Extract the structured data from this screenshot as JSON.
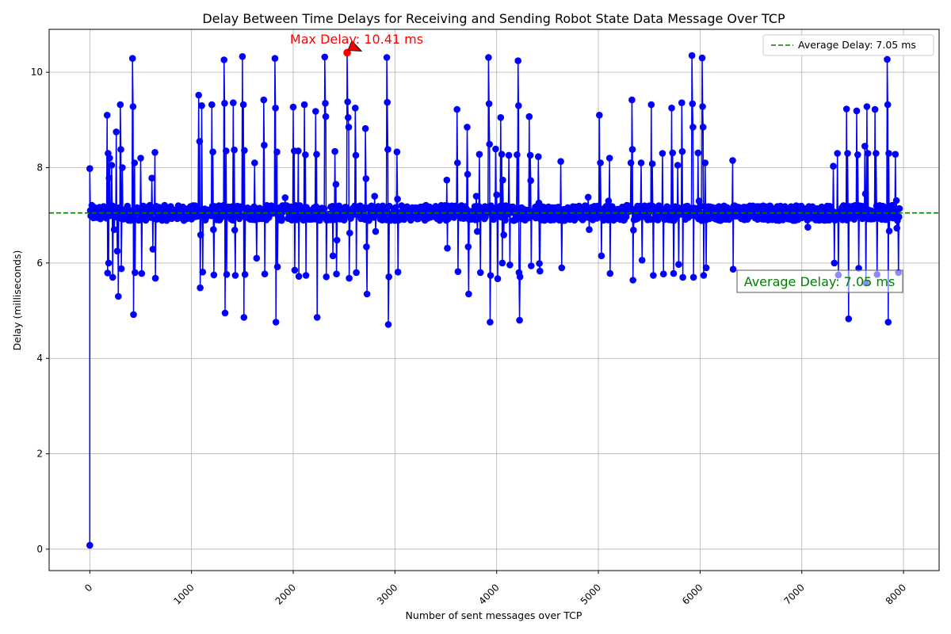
{
  "chart_data": {
    "type": "line",
    "title": "Delay Between Time Delays for Receiving and Sending Robot State Data Message Over TCP",
    "xlabel": "Number of sent messages over TCP",
    "ylabel": "Delay (milliseconds)",
    "xlim": [
      -400,
      8350
    ],
    "ylim": [
      -0.45,
      10.9
    ],
    "xticks": [
      0,
      1000,
      2000,
      3000,
      4000,
      5000,
      6000,
      7000,
      8000
    ],
    "xtick_labels": [
      "0",
      "1000",
      "2000",
      "3000",
      "4000",
      "5000",
      "6000",
      "7000",
      "8000"
    ],
    "yticks": [
      0,
      2,
      4,
      6,
      8,
      10
    ],
    "ytick_labels": [
      "0",
      "2",
      "4",
      "6",
      "8",
      "10"
    ],
    "grid": true,
    "legend_position": "top-right",
    "colors": {
      "series": "#0000ff",
      "average_line": "#008000",
      "max_marker": "#ff0000",
      "max_arrow": "#ff0000"
    },
    "series": [
      {
        "name": "",
        "x_start": 0,
        "x_end": 7960,
        "baseline_ms": 7.05,
        "first_point": {
          "x": 0,
          "y": 0.08
        },
        "spikes": [
          [
            0,
            7.98
          ],
          [
            170,
            9.1
          ],
          [
            175,
            5.79
          ],
          [
            180,
            8.3
          ],
          [
            185,
            6.0
          ],
          [
            190,
            7.78
          ],
          [
            195,
            8.2
          ],
          [
            215,
            8.05
          ],
          [
            225,
            5.7
          ],
          [
            240,
            6.7
          ],
          [
            260,
            8.75
          ],
          [
            270,
            6.25
          ],
          [
            280,
            5.3
          ],
          [
            300,
            9.32
          ],
          [
            305,
            8.38
          ],
          [
            310,
            5.88
          ],
          [
            320,
            8.0
          ],
          [
            420,
            10.29
          ],
          [
            425,
            9.28
          ],
          [
            430,
            4.92
          ],
          [
            440,
            8.1
          ],
          [
            445,
            5.8
          ],
          [
            500,
            8.2
          ],
          [
            510,
            5.78
          ],
          [
            610,
            7.78
          ],
          [
            620,
            6.29
          ],
          [
            640,
            8.32
          ],
          [
            645,
            5.68
          ],
          [
            1070,
            9.52
          ],
          [
            1080,
            8.55
          ],
          [
            1085,
            5.48
          ],
          [
            1090,
            6.59
          ],
          [
            1100,
            9.3
          ],
          [
            1110,
            5.81
          ],
          [
            1200,
            9.32
          ],
          [
            1210,
            8.33
          ],
          [
            1215,
            6.7
          ],
          [
            1220,
            5.75
          ],
          [
            1320,
            10.26
          ],
          [
            1325,
            9.35
          ],
          [
            1330,
            4.95
          ],
          [
            1340,
            8.35
          ],
          [
            1345,
            5.76
          ],
          [
            1410,
            9.36
          ],
          [
            1420,
            8.37
          ],
          [
            1425,
            6.69
          ],
          [
            1430,
            5.74
          ],
          [
            1500,
            10.33
          ],
          [
            1510,
            9.32
          ],
          [
            1515,
            4.86
          ],
          [
            1520,
            8.36
          ],
          [
            1525,
            5.76
          ],
          [
            1620,
            8.1
          ],
          [
            1640,
            6.1
          ],
          [
            1710,
            9.42
          ],
          [
            1715,
            8.47
          ],
          [
            1720,
            5.77
          ],
          [
            1820,
            10.29
          ],
          [
            1825,
            9.25
          ],
          [
            1830,
            4.76
          ],
          [
            1840,
            8.33
          ],
          [
            1845,
            5.92
          ],
          [
            1920,
            7.37
          ],
          [
            2000,
            9.27
          ],
          [
            2010,
            8.35
          ],
          [
            2015,
            5.85
          ],
          [
            2050,
            8.35
          ],
          [
            2055,
            5.72
          ],
          [
            2110,
            9.32
          ],
          [
            2120,
            8.27
          ],
          [
            2125,
            5.74
          ],
          [
            2220,
            9.18
          ],
          [
            2230,
            8.28
          ],
          [
            2235,
            4.86
          ],
          [
            2310,
            10.32
          ],
          [
            2315,
            9.35
          ],
          [
            2320,
            9.07
          ],
          [
            2325,
            5.71
          ],
          [
            2390,
            6.15
          ],
          [
            2410,
            8.34
          ],
          [
            2420,
            7.65
          ],
          [
            2425,
            5.77
          ],
          [
            2430,
            6.48
          ],
          [
            2530,
            10.41
          ],
          [
            2535,
            9.38
          ],
          [
            2540,
            9.05
          ],
          [
            2545,
            8.85
          ],
          [
            2550,
            5.68
          ],
          [
            2555,
            6.63
          ],
          [
            2610,
            9.25
          ],
          [
            2615,
            8.26
          ],
          [
            2620,
            5.8
          ],
          [
            2710,
            8.82
          ],
          [
            2715,
            7.77
          ],
          [
            2720,
            6.34
          ],
          [
            2725,
            5.35
          ],
          [
            2800,
            7.4
          ],
          [
            2810,
            6.66
          ],
          [
            2920,
            10.31
          ],
          [
            2925,
            9.37
          ],
          [
            2930,
            8.38
          ],
          [
            2935,
            4.71
          ],
          [
            2940,
            5.71
          ],
          [
            3020,
            8.33
          ],
          [
            3025,
            7.34
          ],
          [
            3030,
            5.81
          ],
          [
            3510,
            7.74
          ],
          [
            3515,
            6.31
          ],
          [
            3610,
            9.22
          ],
          [
            3615,
            8.1
          ],
          [
            3620,
            5.82
          ],
          [
            3710,
            8.85
          ],
          [
            3715,
            7.86
          ],
          [
            3720,
            6.34
          ],
          [
            3725,
            5.35
          ],
          [
            3800,
            7.4
          ],
          [
            3810,
            6.66
          ],
          [
            3830,
            8.28
          ],
          [
            3840,
            5.8
          ],
          [
            3920,
            10.31
          ],
          [
            3925,
            9.34
          ],
          [
            3930,
            8.49
          ],
          [
            3935,
            4.76
          ],
          [
            3940,
            5.74
          ],
          [
            3990,
            8.39
          ],
          [
            4000,
            7.43
          ],
          [
            4010,
            5.67
          ],
          [
            4040,
            9.05
          ],
          [
            4050,
            8.28
          ],
          [
            4055,
            6.0
          ],
          [
            4060,
            7.74
          ],
          [
            4070,
            6.59
          ],
          [
            4120,
            8.26
          ],
          [
            4130,
            5.96
          ],
          [
            4200,
            8.27
          ],
          [
            4210,
            10.24
          ],
          [
            4215,
            9.3
          ],
          [
            4220,
            5.8
          ],
          [
            4225,
            4.8
          ],
          [
            4230,
            5.71
          ],
          [
            4320,
            9.07
          ],
          [
            4330,
            8.26
          ],
          [
            4335,
            7.73
          ],
          [
            4340,
            5.94
          ],
          [
            4410,
            8.23
          ],
          [
            4415,
            7.26
          ],
          [
            4420,
            5.99
          ],
          [
            4425,
            5.83
          ],
          [
            4630,
            8.13
          ],
          [
            4640,
            5.9
          ],
          [
            4900,
            7.38
          ],
          [
            4910,
            6.7
          ],
          [
            5010,
            9.1
          ],
          [
            5020,
            8.1
          ],
          [
            5030,
            6.15
          ],
          [
            5100,
            7.3
          ],
          [
            5110,
            8.2
          ],
          [
            5115,
            5.78
          ],
          [
            5320,
            8.1
          ],
          [
            5330,
            9.42
          ],
          [
            5335,
            8.38
          ],
          [
            5340,
            5.64
          ],
          [
            5345,
            6.69
          ],
          [
            5420,
            8.1
          ],
          [
            5430,
            6.06
          ],
          [
            5520,
            9.32
          ],
          [
            5530,
            8.08
          ],
          [
            5540,
            5.74
          ],
          [
            5630,
            8.3
          ],
          [
            5640,
            5.77
          ],
          [
            5720,
            9.25
          ],
          [
            5730,
            8.31
          ],
          [
            5740,
            5.78
          ],
          [
            5780,
            8.05
          ],
          [
            5790,
            5.97
          ],
          [
            5820,
            9.36
          ],
          [
            5825,
            8.34
          ],
          [
            5830,
            5.7
          ],
          [
            5920,
            10.35
          ],
          [
            5925,
            9.34
          ],
          [
            5930,
            8.85
          ],
          [
            5935,
            5.7
          ],
          [
            5980,
            8.31
          ],
          [
            5990,
            7.3
          ],
          [
            6020,
            10.3
          ],
          [
            6025,
            9.28
          ],
          [
            6030,
            8.85
          ],
          [
            6035,
            5.74
          ],
          [
            6050,
            8.1
          ],
          [
            6060,
            5.9
          ],
          [
            6320,
            8.15
          ],
          [
            6325,
            5.87
          ],
          [
            7060,
            6.75
          ],
          [
            7310,
            8.03
          ],
          [
            7320,
            6.0
          ],
          [
            7350,
            8.3
          ],
          [
            7360,
            5.75
          ],
          [
            7440,
            9.23
          ],
          [
            7450,
            8.3
          ],
          [
            7460,
            4.83
          ],
          [
            7540,
            9.19
          ],
          [
            7550,
            8.27
          ],
          [
            7560,
            5.89
          ],
          [
            7620,
            8.45
          ],
          [
            7625,
            7.45
          ],
          [
            7630,
            5.58
          ],
          [
            7640,
            9.28
          ],
          [
            7650,
            8.3
          ],
          [
            7720,
            9.22
          ],
          [
            7730,
            8.3
          ],
          [
            7740,
            5.76
          ],
          [
            7840,
            10.27
          ],
          [
            7845,
            9.32
          ],
          [
            7850,
            4.76
          ],
          [
            7855,
            8.3
          ],
          [
            7860,
            6.67
          ],
          [
            7920,
            8.28
          ],
          [
            7930,
            7.31
          ],
          [
            7935,
            6.73
          ],
          [
            7950,
            5.8
          ]
        ]
      }
    ],
    "average_line": {
      "y": 7.05,
      "label": "Average Delay: 7.05 ms"
    },
    "max_point": {
      "x": 2530,
      "y": 10.41,
      "label": "Max Delay: 10.41 ms"
    },
    "legend": [
      {
        "label": "Average Delay: 7.05 ms"
      }
    ]
  }
}
